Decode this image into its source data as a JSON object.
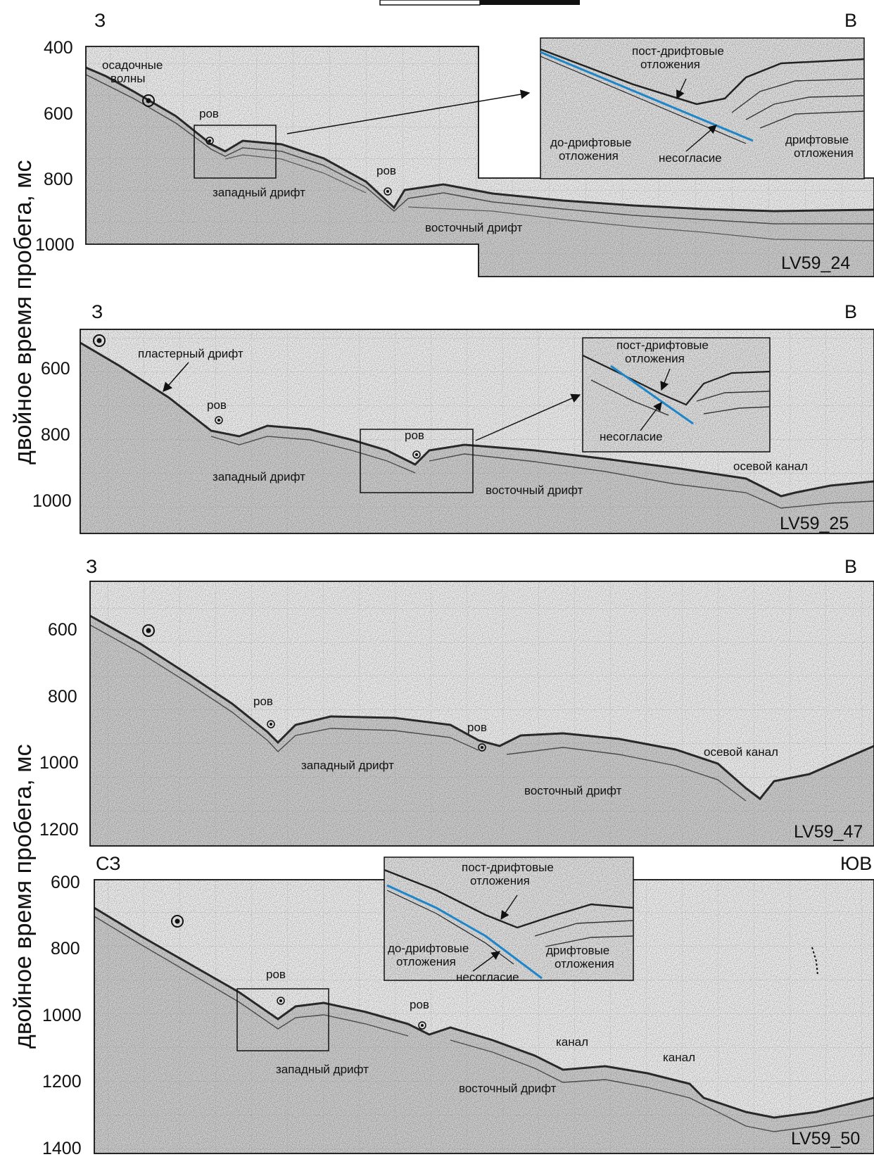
{
  "y_axis_label": "двойное время пробега, мс",
  "profiles": [
    {
      "name": "LV59_24",
      "dir_left": "З",
      "dir_right": "В",
      "ticks": [
        "400",
        "600",
        "800",
        "1000"
      ],
      "labels": {
        "waves": "осадочные\nволны",
        "moat1": "ров",
        "moat2": "ров",
        "west_drift": "западный дрифт",
        "east_drift": "восточный дрифт"
      },
      "inset": {
        "post": "пост-дрифтовые\nотложения",
        "pre": "до-дрифтовые\nотложения",
        "unconformity": "несогласие",
        "drift": "дрифтовые\nотложения"
      }
    },
    {
      "name": "LV59_25",
      "dir_left": "З",
      "dir_right": "В",
      "ticks": [
        "600",
        "800",
        "1000"
      ],
      "labels": {
        "plaster": "пластерный дрифт",
        "moat1": "ров",
        "moat2": "ров",
        "west_drift": "западный дрифт",
        "east_drift": "восточный дрифт",
        "axial": "осевой канал"
      },
      "inset": {
        "post": "пост-дрифтовые\nотложения",
        "unconformity": "несогласие"
      }
    },
    {
      "name": "LV59_47",
      "dir_left": "З",
      "dir_right": "В",
      "ticks": [
        "600",
        "800",
        "1000",
        "1200"
      ],
      "labels": {
        "moat1": "ров",
        "moat2": "ров",
        "west_drift": "западный дрифт",
        "east_drift": "восточный дрифт",
        "axial": "осевой канал"
      }
    },
    {
      "name": "LV59_50",
      "dir_left": "СЗ",
      "dir_right": "ЮВ",
      "ticks": [
        "600",
        "800",
        "1000",
        "1200",
        "1400"
      ],
      "labels": {
        "moat1": "ров",
        "moat2": "ров",
        "west_drift": "западный дрифт",
        "east_drift": "восточный дрифт",
        "channel1": "канал",
        "channel2": "канал"
      },
      "inset": {
        "post": "пост-дрифтовые\nотложения",
        "pre": "до-дрифтовые\nотложения",
        "unconformity": "несогласие",
        "drift": "дрифтовые\nотложения"
      }
    }
  ],
  "colors": {
    "reflector": "#1e86c8",
    "seismic": "#3a3a3a",
    "grid": "#cfcfcf"
  }
}
